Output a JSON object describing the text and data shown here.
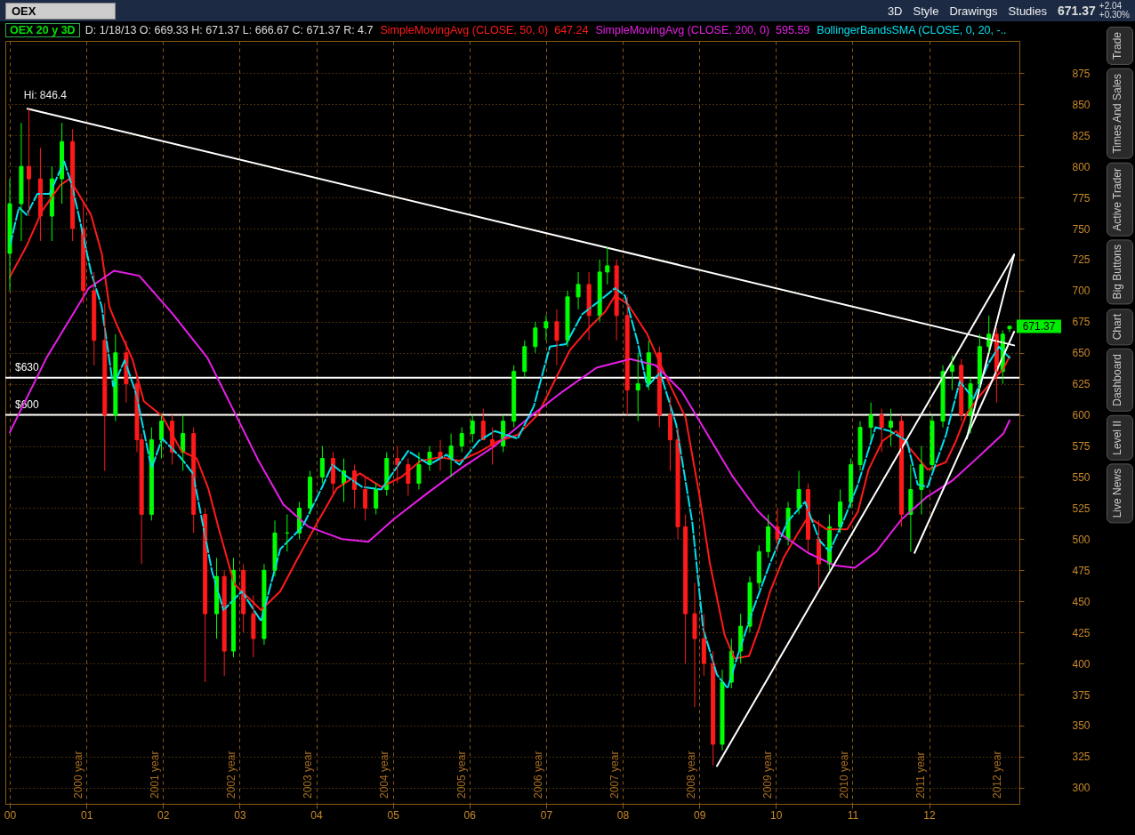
{
  "chart_data": {
    "type": "candlestick",
    "title": "OEX 20 y 3D",
    "subtitle": "D: 1/18/13   O: 669.33   H: 671.37   L: 666.67   C: 671.37   R: 4.7",
    "x": [
      2000.0,
      2000.15,
      2000.25,
      2000.4,
      2000.55,
      2000.68,
      2000.82,
      2000.96,
      2001.1,
      2001.24,
      2001.38,
      2001.52,
      2001.66,
      2001.72,
      2001.85,
      2001.98,
      2002.12,
      2002.26,
      2002.4,
      2002.55,
      2002.7,
      2002.8,
      2002.92,
      2003.05,
      2003.18,
      2003.32,
      2003.46,
      2003.62,
      2003.78,
      2003.92,
      2004.08,
      2004.22,
      2004.36,
      2004.5,
      2004.64,
      2004.78,
      2004.92,
      2005.06,
      2005.2,
      2005.34,
      2005.48,
      2005.62,
      2005.76,
      2005.9,
      2006.04,
      2006.18,
      2006.3,
      2006.44,
      2006.58,
      2006.72,
      2006.86,
      2007.0,
      2007.14,
      2007.28,
      2007.42,
      2007.56,
      2007.7,
      2007.8,
      2007.92,
      2008.06,
      2008.2,
      2008.34,
      2008.48,
      2008.62,
      2008.72,
      2008.82,
      2008.94,
      2009.06,
      2009.18,
      2009.3,
      2009.42,
      2009.54,
      2009.66,
      2009.78,
      2009.9,
      2010.02,
      2010.16,
      2010.3,
      2010.42,
      2010.56,
      2010.7,
      2010.84,
      2010.98,
      2011.1,
      2011.24,
      2011.38,
      2011.5,
      2011.64,
      2011.76,
      2011.9,
      2012.04,
      2012.18,
      2012.3,
      2012.42,
      2012.54,
      2012.66,
      2012.78,
      2012.88,
      2012.96,
      2013.05
    ],
    "ohlc": [
      [
        730,
        790,
        700,
        770
      ],
      [
        770,
        835,
        740,
        800
      ],
      [
        800,
        846.4,
        760,
        790
      ],
      [
        790,
        815,
        740,
        760
      ],
      [
        760,
        800,
        740,
        790
      ],
      [
        790,
        835,
        770,
        820
      ],
      [
        820,
        830,
        740,
        750
      ],
      [
        750,
        770,
        690,
        700
      ],
      [
        700,
        715,
        640,
        660
      ],
      [
        660,
        690,
        555,
        600
      ],
      [
        600,
        665,
        595,
        650
      ],
      [
        650,
        660,
        610,
        625
      ],
      [
        625,
        630,
        570,
        580
      ],
      [
        580,
        585,
        480,
        520
      ],
      [
        520,
        590,
        515,
        580
      ],
      [
        580,
        600,
        565,
        595
      ],
      [
        595,
        600,
        560,
        570
      ],
      [
        570,
        600,
        555,
        585
      ],
      [
        585,
        590,
        505,
        520
      ],
      [
        520,
        525,
        385,
        440
      ],
      [
        440,
        485,
        420,
        470
      ],
      [
        470,
        475,
        390,
        410
      ],
      [
        410,
        485,
        405,
        475
      ],
      [
        475,
        480,
        425,
        440
      ],
      [
        440,
        455,
        405,
        420
      ],
      [
        420,
        480,
        415,
        475
      ],
      [
        475,
        515,
        470,
        505
      ],
      [
        505,
        520,
        490,
        505
      ],
      [
        505,
        530,
        500,
        525
      ],
      [
        525,
        555,
        520,
        550
      ],
      [
        550,
        575,
        545,
        565
      ],
      [
        565,
        570,
        535,
        545
      ],
      [
        545,
        565,
        530,
        555
      ],
      [
        555,
        560,
        525,
        540
      ],
      [
        540,
        550,
        515,
        525
      ],
      [
        525,
        545,
        520,
        540
      ],
      [
        540,
        570,
        535,
        565
      ],
      [
        565,
        575,
        545,
        560
      ],
      [
        560,
        565,
        535,
        545
      ],
      [
        545,
        570,
        540,
        560
      ],
      [
        560,
        575,
        555,
        570
      ],
      [
        570,
        580,
        555,
        565
      ],
      [
        565,
        585,
        550,
        575
      ],
      [
        575,
        590,
        570,
        585
      ],
      [
        585,
        600,
        578,
        595
      ],
      [
        595,
        605,
        580,
        580
      ],
      [
        580,
        590,
        560,
        575
      ],
      [
        575,
        600,
        570,
        595
      ],
      [
        595,
        640,
        590,
        635
      ],
      [
        635,
        660,
        630,
        655
      ],
      [
        655,
        675,
        650,
        670
      ],
      [
        670,
        680,
        660,
        675
      ],
      [
        675,
        685,
        640,
        660
      ],
      [
        660,
        700,
        655,
        695
      ],
      [
        695,
        715,
        685,
        705
      ],
      [
        705,
        715,
        660,
        680
      ],
      [
        680,
        725,
        675,
        715
      ],
      [
        715,
        735,
        705,
        720
      ],
      [
        720,
        725,
        660,
        680
      ],
      [
        680,
        695,
        600,
        620
      ],
      [
        620,
        650,
        595,
        625
      ],
      [
        625,
        660,
        620,
        650
      ],
      [
        650,
        655,
        590,
        600
      ],
      [
        600,
        615,
        555,
        580
      ],
      [
        580,
        590,
        500,
        510
      ],
      [
        510,
        520,
        400,
        440
      ],
      [
        440,
        465,
        365,
        420
      ],
      [
        420,
        440,
        390,
        400
      ],
      [
        400,
        410,
        318,
        335
      ],
      [
        335,
        395,
        330,
        385
      ],
      [
        385,
        420,
        380,
        410
      ],
      [
        410,
        440,
        400,
        430
      ],
      [
        430,
        470,
        425,
        465
      ],
      [
        465,
        495,
        460,
        490
      ],
      [
        490,
        520,
        485,
        510
      ],
      [
        510,
        525,
        490,
        500
      ],
      [
        500,
        530,
        495,
        525
      ],
      [
        525,
        555,
        520,
        540
      ],
      [
        540,
        545,
        490,
        500
      ],
      [
        500,
        515,
        460,
        480
      ],
      [
        480,
        520,
        475,
        510
      ],
      [
        510,
        540,
        505,
        530
      ],
      [
        530,
        565,
        525,
        560
      ],
      [
        560,
        595,
        555,
        590
      ],
      [
        590,
        610,
        580,
        600
      ],
      [
        600,
        605,
        570,
        590
      ],
      [
        590,
        605,
        575,
        595
      ],
      [
        595,
        600,
        510,
        520
      ],
      [
        520,
        560,
        490,
        540
      ],
      [
        540,
        575,
        520,
        560
      ],
      [
        560,
        600,
        555,
        595
      ],
      [
        595,
        640,
        590,
        635
      ],
      [
        635,
        648,
        620,
        640
      ],
      [
        640,
        645,
        595,
        600
      ],
      [
        600,
        630,
        585,
        625
      ],
      [
        625,
        665,
        620,
        655
      ],
      [
        655,
        680,
        650,
        665
      ],
      [
        665,
        670,
        610,
        635
      ],
      [
        635,
        668,
        625,
        665
      ],
      [
        669.33,
        671.37,
        666.67,
        671.37
      ]
    ],
    "series": [
      {
        "name": "SimpleMovingAvg (CLOSE, 50, 0)  647.24",
        "type": "line",
        "color": "#ff1a1a",
        "x": [
          2000.0,
          2000.22,
          2000.42,
          2000.66,
          2000.78,
          2001.06,
          2001.2,
          2001.3,
          2001.4,
          2001.6,
          2001.75,
          2001.99,
          2002.24,
          2002.44,
          2002.59,
          2002.73,
          2002.93,
          2003.28,
          2003.53,
          2003.77,
          2004.02,
          2004.27,
          2004.57,
          2004.85,
          2005.11,
          2005.36,
          2005.62,
          2005.87,
          2006.12,
          2006.38,
          2006.63,
          2006.89,
          2007.1,
          2007.31,
          2007.56,
          2007.77,
          2007.9,
          2008.07,
          2008.32,
          2008.58,
          2008.82,
          2009.0,
          2009.14,
          2009.33,
          2009.46,
          2009.65,
          2009.78,
          2009.92,
          2010.1,
          2010.29,
          2010.42,
          2010.66,
          2010.93,
          2011.07,
          2011.21,
          2011.39,
          2011.57,
          2011.75,
          2011.98,
          2012.22,
          2012.35,
          2012.49,
          2012.67,
          2012.86,
          2012.97,
          2013.05
        ],
        "values": [
          711,
          736,
          764,
          785,
          790,
          761,
          730,
          687,
          672,
          645,
          611,
          599,
          571,
          565,
          541,
          508,
          464,
          443,
          458,
          486,
          514,
          541,
          553,
          542,
          550,
          563,
          566,
          563,
          570,
          579,
          584,
          600,
          626,
          652,
          670,
          683,
          696,
          689,
          665,
          629,
          598,
          536,
          480,
          423,
          404,
          406,
          428,
          457,
          485,
          505,
          518,
          508,
          508,
          522,
          556,
          579,
          587,
          573,
          556,
          562,
          579,
          601,
          616,
          630,
          637,
          647.24
        ]
      },
      {
        "name": "SimpleMovingAvg (CLOSE, 200, 0)  595.59",
        "type": "line",
        "color": "#e81ee8",
        "x": [
          2000.0,
          2000.48,
          2001.03,
          2001.36,
          2001.69,
          2002.13,
          2002.58,
          2002.91,
          2003.24,
          2003.57,
          2003.9,
          2004.34,
          2004.68,
          2005.01,
          2005.45,
          2005.89,
          2006.33,
          2006.78,
          2007.22,
          2007.66,
          2008.1,
          2008.43,
          2008.77,
          2009.1,
          2009.43,
          2009.76,
          2010.09,
          2010.42,
          2010.76,
          2011.03,
          2011.31,
          2011.64,
          2011.97,
          2012.3,
          2012.64,
          2012.97,
          2013.05
        ],
        "values": [
          586,
          646,
          702,
          716,
          712,
          681,
          646,
          605,
          564,
          528,
          510,
          500,
          498,
          516,
          537,
          557,
          575,
          598,
          619,
          638,
          645,
          640,
          619,
          585,
          551,
          523,
          503,
          489,
          479,
          477,
          490,
          516,
          534,
          547,
          566,
          585,
          595.59
        ]
      },
      {
        "name": "BollingerBandsSMA (CLOSE, 0, 20, -..",
        "type": "line",
        "line_style": "dashed",
        "color": "#00e0f0",
        "x": [
          2000.0,
          2000.12,
          2000.22,
          2000.36,
          2000.52,
          2000.71,
          2000.81,
          2000.91,
          2001.06,
          2001.2,
          2001.35,
          2001.5,
          2001.65,
          2001.85,
          2001.99,
          2002.24,
          2002.39,
          2002.64,
          2002.79,
          2003.03,
          2003.28,
          2003.53,
          2003.82,
          2004.07,
          2004.21,
          2004.41,
          2004.6,
          2004.85,
          2005.2,
          2005.48,
          2005.7,
          2005.87,
          2006.12,
          2006.33,
          2006.63,
          2006.84,
          2007.05,
          2007.26,
          2007.47,
          2007.68,
          2007.9,
          2008.03,
          2008.19,
          2008.32,
          2008.49,
          2008.7,
          2008.91,
          2009.05,
          2009.23,
          2009.37,
          2009.51,
          2009.7,
          2009.92,
          2010.15,
          2010.38,
          2010.57,
          2010.7,
          2010.89,
          2011.07,
          2011.3,
          2011.49,
          2011.71,
          2011.85,
          2011.98,
          2012.22,
          2012.4,
          2012.58,
          2012.77,
          2012.91,
          2013.05
        ],
        "values": [
          736,
          767,
          761,
          778,
          778,
          804,
          785,
          758,
          715,
          687,
          623,
          644,
          617,
          557,
          581,
          565,
          553,
          474,
          443,
          458,
          434,
          492,
          510,
          541,
          560,
          550,
          542,
          540,
          571,
          560,
          568,
          560,
          579,
          587,
          581,
          607,
          655,
          657,
          681,
          691,
          702,
          696,
          660,
          623,
          634,
          592,
          513,
          428,
          391,
          380,
          408,
          443,
          480,
          514,
          530,
          499,
          490,
          516,
          544,
          590,
          587,
          579,
          544,
          542,
          584,
          627,
          613,
          641,
          655,
          646
        ]
      },
      {
        "type": "line",
        "color": "#ffffff",
        "x": [
          2000.23,
          2013.11
        ],
        "values": [
          846.4,
          656
        ]
      },
      {
        "type": "line",
        "color": "#ffffff",
        "x": [
          2009.23,
          2013.11
        ],
        "values": [
          317.5,
          729
        ]
      },
      {
        "type": "line",
        "color": "#ffffff",
        "x": [
          2011.81,
          2013.11
        ],
        "values": [
          489,
          667
        ]
      },
      {
        "type": "line",
        "color": "#ffffff",
        "x": [
          2012.49,
          2013.11
        ],
        "values": [
          581,
          729
        ]
      }
    ],
    "xlim": [
      2000,
      2013.12
    ],
    "ylim": [
      287,
      901
    ],
    "xticks": [
      {
        "value": 2000,
        "label": "00"
      },
      {
        "value": 2001,
        "label": "01"
      },
      {
        "value": 2002,
        "label": "02"
      },
      {
        "value": 2003,
        "label": "03"
      },
      {
        "value": 2004,
        "label": "04"
      },
      {
        "value": 2005,
        "label": "05"
      },
      {
        "value": 2006,
        "label": "06"
      },
      {
        "value": 2007,
        "label": "07"
      },
      {
        "value": 2008,
        "label": "08"
      },
      {
        "value": 2009,
        "label": "09"
      },
      {
        "value": 2010,
        "label": "10"
      },
      {
        "value": 2011,
        "label": "11"
      },
      {
        "value": 2012,
        "label": "12"
      }
    ],
    "yticks": [
      300,
      325,
      350,
      375,
      400,
      425,
      450,
      475,
      500,
      525,
      550,
      575,
      600,
      625,
      650,
      675,
      700,
      725,
      750,
      775,
      800,
      825,
      850,
      875
    ],
    "ref_lines": [
      {
        "axis": "y",
        "value": 630,
        "label": "$630",
        "color": "#ffffff"
      },
      {
        "axis": "y",
        "value": 600,
        "label": "$600",
        "color": "#ffffff"
      }
    ],
    "annotations": [
      "OEX",
      "3D",
      "Style",
      "Drawings",
      "Studies",
      "671.37",
      "+2.04",
      "+0.30%",
      "Trade",
      "Times And Sales",
      "Active Trader",
      "Big Buttons",
      "Chart",
      "Dashboard",
      "Level II",
      "Live News",
      "2000 year",
      "2001 year",
      "2002 year",
      "2003 year",
      "2004 year",
      "2005 year",
      "2006 year",
      "2007 year",
      "2008 year",
      "2009 year",
      "2010 year",
      "2011 year",
      "2012 year",
      {
        "text": "Hi: 846.4",
        "x": 2000.23,
        "y": 846.4
      },
      {
        "text": "671.37",
        "x": 2013.05,
        "y": 671.37
      }
    ],
    "grid": true,
    "legend": "top"
  }
}
